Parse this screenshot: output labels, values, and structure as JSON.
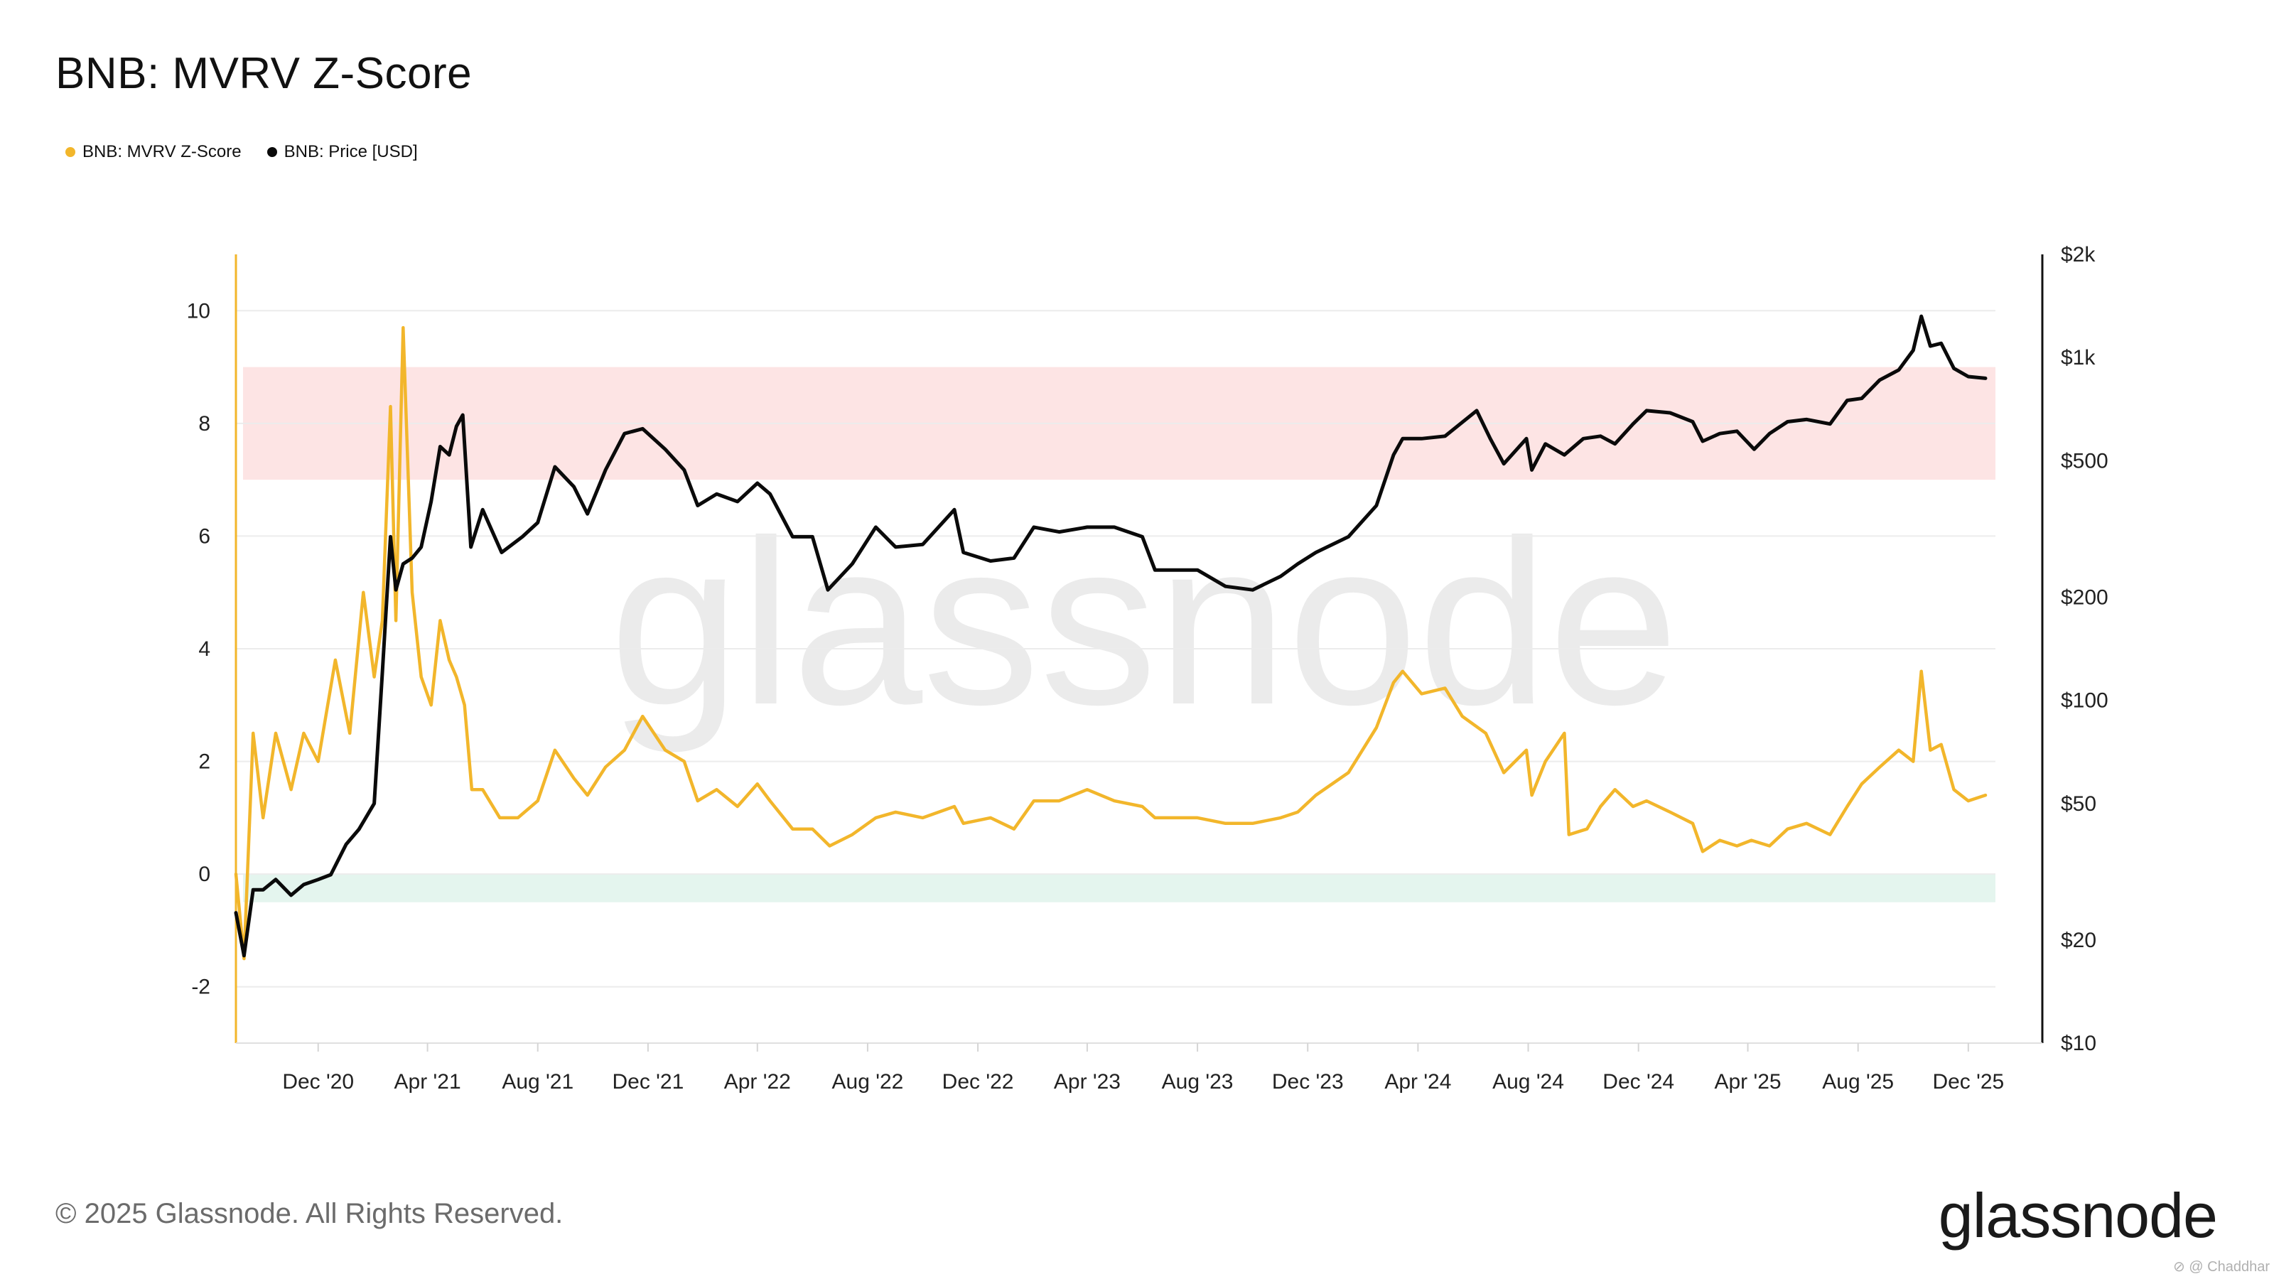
{
  "title": "BNB: MVRV Z-Score",
  "legend": [
    {
      "label": "BNB: MVRV Z-Score",
      "color": "#f2b62b"
    },
    {
      "label": "BNB: Price [USD]",
      "color": "#0a0a0a"
    }
  ],
  "footer": "© 2025 Glassnode. All Rights Reserved.",
  "brand": "glassnode",
  "watermark": "glassnode",
  "credit": "⊘ @ Chaddhar",
  "chart_data": {
    "type": "line",
    "title": "BNB: MVRV Z-Score",
    "x_ticks": [
      {
        "date": "2020-12-01",
        "label": "Dec '20"
      },
      {
        "date": "2021-04-01",
        "label": "Apr '21"
      },
      {
        "date": "2021-08-01",
        "label": "Aug '21"
      },
      {
        "date": "2021-12-01",
        "label": "Dec '21"
      },
      {
        "date": "2022-04-01",
        "label": "Apr '22"
      },
      {
        "date": "2022-08-01",
        "label": "Aug '22"
      },
      {
        "date": "2022-12-01",
        "label": "Dec '22"
      },
      {
        "date": "2023-04-01",
        "label": "Apr '23"
      },
      {
        "date": "2023-08-01",
        "label": "Aug '23"
      },
      {
        "date": "2023-12-01",
        "label": "Dec '23"
      },
      {
        "date": "2024-04-01",
        "label": "Apr '24"
      },
      {
        "date": "2024-08-01",
        "label": "Aug '24"
      },
      {
        "date": "2024-12-01",
        "label": "Dec '24"
      },
      {
        "date": "2025-04-01",
        "label": "Apr '25"
      },
      {
        "date": "2025-08-01",
        "label": "Aug '25"
      },
      {
        "date": "2025-12-01",
        "label": "Dec '25"
      }
    ],
    "xlim": [
      "2020-09-01",
      "2025-12-31"
    ],
    "y_left": {
      "ylim": [
        -3,
        11
      ],
      "ticks": [
        -2,
        0,
        2,
        4,
        6,
        8,
        10
      ]
    },
    "y_right": {
      "scale": "log",
      "ylim": [
        10,
        2000
      ],
      "ticks": [
        {
          "value": 10,
          "label": "$10"
        },
        {
          "value": 20,
          "label": "$20"
        },
        {
          "value": 50,
          "label": "$50"
        },
        {
          "value": 100,
          "label": "$100"
        },
        {
          "value": 200,
          "label": "$200"
        },
        {
          "value": 500,
          "label": "$500"
        },
        {
          "value": 1000,
          "label": "$1k"
        },
        {
          "value": 2000,
          "label": "$2k"
        }
      ]
    },
    "bands": [
      {
        "axis": "left",
        "from": 7,
        "to": 9,
        "color": "#fde4e4"
      },
      {
        "axis": "left",
        "from": -0.5,
        "to": 0,
        "color": "#e4f5ee"
      }
    ],
    "series": [
      {
        "name": "BNB: MVRV Z-Score",
        "axis": "left",
        "color": "#f2b62b",
        "points": [
          [
            "2020-09-01",
            0.0
          ],
          [
            "2020-09-10",
            -1.5
          ],
          [
            "2020-09-20",
            2.5
          ],
          [
            "2020-10-01",
            1.0
          ],
          [
            "2020-10-15",
            2.5
          ],
          [
            "2020-11-01",
            1.5
          ],
          [
            "2020-11-15",
            2.5
          ],
          [
            "2020-12-01",
            2.0
          ],
          [
            "2020-12-20",
            3.8
          ],
          [
            "2021-01-05",
            2.5
          ],
          [
            "2021-01-20",
            5.0
          ],
          [
            "2021-02-01",
            3.5
          ],
          [
            "2021-02-10",
            4.5
          ],
          [
            "2021-02-19",
            8.3
          ],
          [
            "2021-02-25",
            4.5
          ],
          [
            "2021-03-05",
            9.7
          ],
          [
            "2021-03-15",
            5.0
          ],
          [
            "2021-03-25",
            3.5
          ],
          [
            "2021-04-05",
            3.0
          ],
          [
            "2021-04-15",
            4.5
          ],
          [
            "2021-04-25",
            3.8
          ],
          [
            "2021-05-03",
            3.5
          ],
          [
            "2021-05-12",
            3.0
          ],
          [
            "2021-05-20",
            1.5
          ],
          [
            "2021-06-01",
            1.5
          ],
          [
            "2021-06-20",
            1.0
          ],
          [
            "2021-07-10",
            1.0
          ],
          [
            "2021-08-01",
            1.3
          ],
          [
            "2021-08-20",
            2.2
          ],
          [
            "2021-09-10",
            1.7
          ],
          [
            "2021-09-25",
            1.4
          ],
          [
            "2021-10-15",
            1.9
          ],
          [
            "2021-11-05",
            2.2
          ],
          [
            "2021-11-25",
            2.8
          ],
          [
            "2021-12-20",
            2.2
          ],
          [
            "2022-01-10",
            2.0
          ],
          [
            "2022-01-25",
            1.3
          ],
          [
            "2022-02-15",
            1.5
          ],
          [
            "2022-03-10",
            1.2
          ],
          [
            "2022-04-01",
            1.6
          ],
          [
            "2022-04-15",
            1.3
          ],
          [
            "2022-05-10",
            0.8
          ],
          [
            "2022-06-01",
            0.8
          ],
          [
            "2022-06-20",
            0.5
          ],
          [
            "2022-07-15",
            0.7
          ],
          [
            "2022-08-10",
            1.0
          ],
          [
            "2022-09-01",
            1.1
          ],
          [
            "2022-10-01",
            1.0
          ],
          [
            "2022-11-05",
            1.2
          ],
          [
            "2022-11-15",
            0.9
          ],
          [
            "2022-12-15",
            1.0
          ],
          [
            "2023-01-10",
            0.8
          ],
          [
            "2023-02-01",
            1.3
          ],
          [
            "2023-03-01",
            1.3
          ],
          [
            "2023-04-01",
            1.5
          ],
          [
            "2023-05-01",
            1.3
          ],
          [
            "2023-06-01",
            1.2
          ],
          [
            "2023-06-15",
            1.0
          ],
          [
            "2023-08-01",
            1.0
          ],
          [
            "2023-09-01",
            0.9
          ],
          [
            "2023-10-01",
            0.9
          ],
          [
            "2023-11-01",
            1.0
          ],
          [
            "2023-11-20",
            1.1
          ],
          [
            "2023-12-10",
            1.4
          ],
          [
            "2024-01-15",
            1.8
          ],
          [
            "2024-02-15",
            2.6
          ],
          [
            "2024-03-05",
            3.4
          ],
          [
            "2024-03-15",
            3.6
          ],
          [
            "2024-04-05",
            3.2
          ],
          [
            "2024-05-01",
            3.3
          ],
          [
            "2024-05-20",
            2.8
          ],
          [
            "2024-06-15",
            2.5
          ],
          [
            "2024-07-05",
            1.8
          ],
          [
            "2024-07-30",
            2.2
          ],
          [
            "2024-08-05",
            1.4
          ],
          [
            "2024-08-20",
            2.0
          ],
          [
            "2024-09-10",
            2.5
          ],
          [
            "2024-09-15",
            0.7
          ],
          [
            "2024-10-05",
            0.8
          ],
          [
            "2024-10-20",
            1.2
          ],
          [
            "2024-11-05",
            1.5
          ],
          [
            "2024-11-25",
            1.2
          ],
          [
            "2024-12-10",
            1.3
          ],
          [
            "2025-01-05",
            1.1
          ],
          [
            "2025-01-30",
            0.9
          ],
          [
            "2025-02-10",
            0.4
          ],
          [
            "2025-03-01",
            0.6
          ],
          [
            "2025-03-20",
            0.5
          ],
          [
            "2025-04-05",
            0.6
          ],
          [
            "2025-04-25",
            0.5
          ],
          [
            "2025-05-15",
            0.8
          ],
          [
            "2025-06-05",
            0.9
          ],
          [
            "2025-07-01",
            0.7
          ],
          [
            "2025-07-20",
            1.2
          ],
          [
            "2025-08-05",
            1.6
          ],
          [
            "2025-08-25",
            1.9
          ],
          [
            "2025-09-15",
            2.2
          ],
          [
            "2025-10-01",
            2.0
          ],
          [
            "2025-10-10",
            3.6
          ],
          [
            "2025-10-20",
            2.2
          ],
          [
            "2025-11-01",
            2.3
          ],
          [
            "2025-11-15",
            1.5
          ],
          [
            "2025-12-01",
            1.3
          ],
          [
            "2025-12-20",
            1.4
          ]
        ]
      },
      {
        "name": "BNB: Price [USD]",
        "axis": "right",
        "color": "#0a0a0a",
        "points": [
          [
            "2020-09-01",
            24
          ],
          [
            "2020-09-10",
            18
          ],
          [
            "2020-09-20",
            28
          ],
          [
            "2020-10-01",
            28
          ],
          [
            "2020-10-15",
            30
          ],
          [
            "2020-11-01",
            27
          ],
          [
            "2020-11-15",
            29
          ],
          [
            "2020-12-01",
            30
          ],
          [
            "2020-12-15",
            31
          ],
          [
            "2021-01-01",
            38
          ],
          [
            "2021-01-15",
            42
          ],
          [
            "2021-02-01",
            50
          ],
          [
            "2021-02-10",
            120
          ],
          [
            "2021-02-19",
            300
          ],
          [
            "2021-02-25",
            210
          ],
          [
            "2021-03-05",
            250
          ],
          [
            "2021-03-15",
            260
          ],
          [
            "2021-03-25",
            280
          ],
          [
            "2021-04-05",
            380
          ],
          [
            "2021-04-15",
            550
          ],
          [
            "2021-04-25",
            520
          ],
          [
            "2021-05-03",
            630
          ],
          [
            "2021-05-10",
            680
          ],
          [
            "2021-05-19",
            280
          ],
          [
            "2021-06-01",
            360
          ],
          [
            "2021-06-22",
            270
          ],
          [
            "2021-07-15",
            300
          ],
          [
            "2021-08-01",
            330
          ],
          [
            "2021-08-20",
            480
          ],
          [
            "2021-09-10",
            420
          ],
          [
            "2021-09-25",
            350
          ],
          [
            "2021-10-15",
            470
          ],
          [
            "2021-11-05",
            600
          ],
          [
            "2021-11-25",
            620
          ],
          [
            "2021-12-20",
            540
          ],
          [
            "2022-01-10",
            470
          ],
          [
            "2022-01-25",
            370
          ],
          [
            "2022-02-15",
            400
          ],
          [
            "2022-03-10",
            380
          ],
          [
            "2022-04-01",
            430
          ],
          [
            "2022-04-15",
            400
          ],
          [
            "2022-05-10",
            300
          ],
          [
            "2022-06-01",
            300
          ],
          [
            "2022-06-18",
            210
          ],
          [
            "2022-07-15",
            250
          ],
          [
            "2022-08-10",
            320
          ],
          [
            "2022-09-01",
            280
          ],
          [
            "2022-10-01",
            285
          ],
          [
            "2022-11-05",
            360
          ],
          [
            "2022-11-15",
            270
          ],
          [
            "2022-12-15",
            255
          ],
          [
            "2023-01-10",
            260
          ],
          [
            "2023-02-01",
            320
          ],
          [
            "2023-03-01",
            310
          ],
          [
            "2023-04-01",
            320
          ],
          [
            "2023-05-01",
            320
          ],
          [
            "2023-06-01",
            300
          ],
          [
            "2023-06-15",
            240
          ],
          [
            "2023-08-01",
            240
          ],
          [
            "2023-09-01",
            215
          ],
          [
            "2023-10-01",
            210
          ],
          [
            "2023-11-01",
            230
          ],
          [
            "2023-11-20",
            250
          ],
          [
            "2023-12-10",
            270
          ],
          [
            "2024-01-15",
            300
          ],
          [
            "2024-02-15",
            370
          ],
          [
            "2024-03-05",
            520
          ],
          [
            "2024-03-15",
            580
          ],
          [
            "2024-04-05",
            580
          ],
          [
            "2024-05-01",
            590
          ],
          [
            "2024-06-05",
            700
          ],
          [
            "2024-06-20",
            580
          ],
          [
            "2024-07-05",
            490
          ],
          [
            "2024-07-30",
            580
          ],
          [
            "2024-08-05",
            470
          ],
          [
            "2024-08-20",
            560
          ],
          [
            "2024-09-10",
            520
          ],
          [
            "2024-10-01",
            580
          ],
          [
            "2024-10-20",
            590
          ],
          [
            "2024-11-05",
            560
          ],
          [
            "2024-11-25",
            640
          ],
          [
            "2024-12-10",
            700
          ],
          [
            "2025-01-05",
            690
          ],
          [
            "2025-01-30",
            650
          ],
          [
            "2025-02-10",
            570
          ],
          [
            "2025-03-01",
            600
          ],
          [
            "2025-03-20",
            610
          ],
          [
            "2025-04-08",
            540
          ],
          [
            "2025-04-25",
            600
          ],
          [
            "2025-05-15",
            650
          ],
          [
            "2025-06-05",
            660
          ],
          [
            "2025-07-01",
            640
          ],
          [
            "2025-07-20",
            750
          ],
          [
            "2025-08-05",
            760
          ],
          [
            "2025-08-25",
            860
          ],
          [
            "2025-09-15",
            920
          ],
          [
            "2025-10-01",
            1050
          ],
          [
            "2025-10-10",
            1320
          ],
          [
            "2025-10-20",
            1080
          ],
          [
            "2025-11-01",
            1100
          ],
          [
            "2025-11-15",
            930
          ],
          [
            "2025-12-01",
            880
          ],
          [
            "2025-12-20",
            870
          ]
        ]
      }
    ]
  }
}
